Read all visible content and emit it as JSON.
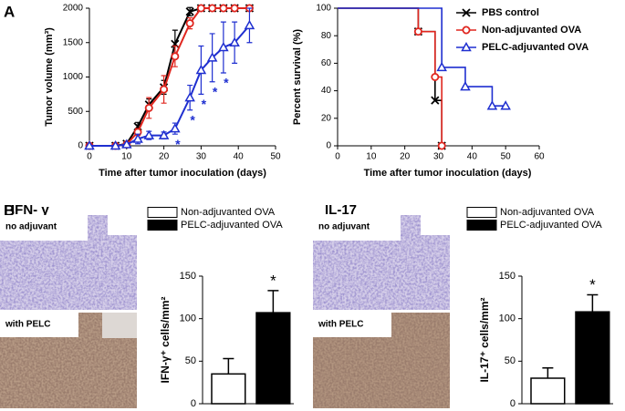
{
  "panel_labels": [
    "A",
    "B"
  ],
  "micrographs": [
    {
      "title": "IFN- γ",
      "labels": [
        "no adjuvant",
        "with PELC"
      ]
    },
    {
      "title": "IL-17",
      "labels": [
        "no adjuvant",
        "with PELC"
      ]
    }
  ],
  "chart_data": [
    {
      "type": "line",
      "y_label": "Tumor volume (mm³)",
      "x_label": "Time after tumor inoculation (days)",
      "x": [
        0,
        7,
        10,
        13,
        16,
        20,
        23,
        27,
        30,
        33,
        36,
        39,
        43
      ],
      "xlim": [
        0,
        50
      ],
      "xticks": [
        0,
        10,
        20,
        30,
        40,
        50
      ],
      "ylim": [
        0,
        2000
      ],
      "yticks": [
        0,
        500,
        1000,
        1500,
        2000
      ],
      "series": [
        {
          "name": "PBS control",
          "color": "#000000",
          "marker": "x",
          "values": [
            0,
            0,
            30,
            280,
            600,
            850,
            1480,
            1950,
            2000,
            2000,
            2000,
            2000,
            2000
          ],
          "errors": [
            0,
            0,
            20,
            60,
            80,
            100,
            200,
            60,
            0,
            0,
            0,
            0,
            0
          ]
        },
        {
          "name": "Non-adjuvanted OVA",
          "color": "#e0261f",
          "marker": "circle",
          "values": [
            0,
            0,
            20,
            200,
            550,
            820,
            1300,
            1780,
            2000,
            2000,
            2000,
            2000,
            2000
          ],
          "errors": [
            0,
            0,
            20,
            50,
            150,
            200,
            150,
            80,
            0,
            0,
            0,
            0,
            0
          ]
        },
        {
          "name": "PELC-adjuvanted OVA",
          "color": "#1f2fd0",
          "marker": "triangle",
          "values": [
            0,
            0,
            20,
            100,
            150,
            150,
            250,
            700,
            1100,
            1280,
            1430,
            1500,
            1750
          ],
          "errors": [
            0,
            0,
            20,
            70,
            60,
            50,
            80,
            180,
            350,
            350,
            370,
            300,
            250
          ],
          "significance": [
            null,
            null,
            null,
            null,
            null,
            null,
            "*",
            "*",
            "*",
            "*",
            "*",
            null,
            null
          ]
        }
      ]
    },
    {
      "type": "step",
      "y_label": "Percent survival (%)",
      "x_label": "Time after tumor inoculation (days)",
      "xlim": [
        0,
        60
      ],
      "xticks": [
        0,
        10,
        20,
        30,
        40,
        50,
        60
      ],
      "ylim": [
        0,
        100
      ],
      "yticks": [
        0,
        20,
        40,
        60,
        80,
        100
      ],
      "legend": "upper right",
      "series": [
        {
          "name": "PBS control",
          "color": "#000000",
          "marker": "x",
          "x": [
            0,
            24,
            29,
            31
          ],
          "values": [
            100,
            83,
            33,
            0
          ]
        },
        {
          "name": "Non-adjuvanted OVA",
          "color": "#e0261f",
          "marker": "circle",
          "x": [
            0,
            24,
            29,
            31
          ],
          "values": [
            100,
            83,
            50,
            0
          ]
        },
        {
          "name": "PELC-adjuvanted OVA",
          "color": "#1f2fd0",
          "marker": "triangle",
          "x": [
            0,
            31,
            38,
            46,
            50
          ],
          "values": [
            100,
            57,
            43,
            29,
            29
          ]
        }
      ]
    },
    {
      "type": "bar",
      "y_label": "IFN-γ⁺ cells/mm²",
      "categories": [
        "Non-adjuvanted OVA",
        "PELC-adjuvanted OVA"
      ],
      "colors": [
        "#ffffff",
        "#000000"
      ],
      "values": [
        35,
        107
      ],
      "errors": [
        18,
        26
      ],
      "significance": [
        null,
        "*"
      ],
      "ylim": [
        0,
        150
      ],
      "yticks": [
        0,
        50,
        100,
        150
      ]
    },
    {
      "type": "bar",
      "y_label": "IL-17⁺ cells/mm²",
      "categories": [
        "Non-adjuvanted OVA",
        "PELC-adjuvanted OVA"
      ],
      "colors": [
        "#ffffff",
        "#000000"
      ],
      "values": [
        30,
        108
      ],
      "errors": [
        12,
        20
      ],
      "significance": [
        null,
        "*"
      ],
      "ylim": [
        0,
        150
      ],
      "yticks": [
        0,
        50,
        100,
        150
      ]
    }
  ]
}
